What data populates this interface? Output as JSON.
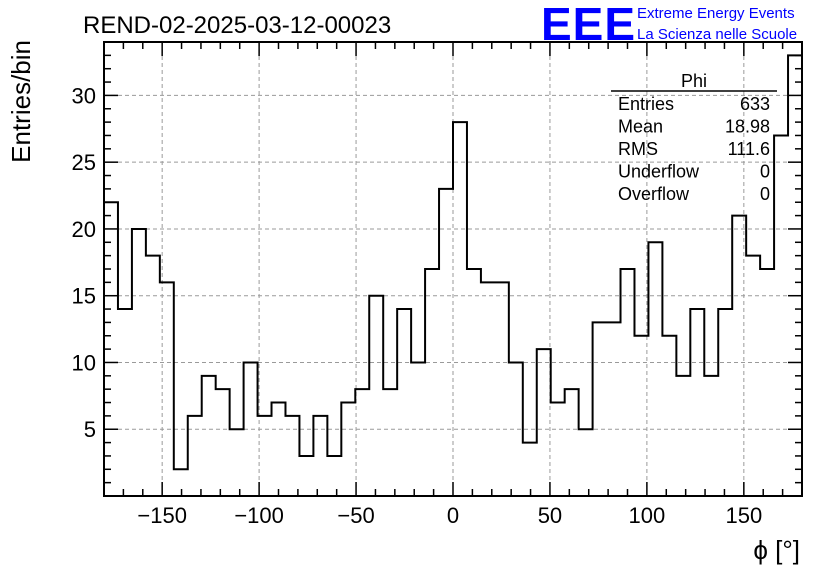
{
  "chart_data": {
    "type": "histogram",
    "title": "REND-02-2025-03-12-00023",
    "xlabel": "ϕ [°]",
    "ylabel": "Entries/bin",
    "xlim": [
      -180,
      180
    ],
    "ylim": [
      0,
      34
    ],
    "bin_width": 7.2,
    "x_ticks": [
      -150,
      -100,
      -50,
      0,
      50,
      100,
      150
    ],
    "x_tick_labels": [
      "−150",
      "−100",
      "−50",
      "0",
      "50",
      "100",
      "150"
    ],
    "y_ticks": [
      5,
      10,
      15,
      20,
      25,
      30
    ],
    "y_tick_labels": [
      "5",
      "10",
      "15",
      "20",
      "25",
      "30"
    ],
    "grid": true,
    "values": [
      22,
      14,
      20,
      18,
      16,
      2,
      6,
      9,
      8,
      5,
      10,
      6,
      7,
      6,
      3,
      6,
      3,
      7,
      8,
      15,
      8,
      14,
      10,
      17,
      23,
      28,
      17,
      16,
      16,
      10,
      4,
      11,
      7,
      8,
      5,
      13,
      13,
      17,
      12,
      19,
      12,
      9,
      14,
      9,
      14,
      21,
      18,
      17,
      27,
      33
    ],
    "stats_box": {
      "name": "Phi",
      "rows": [
        {
          "label": "Entries",
          "value": "633"
        },
        {
          "label": "Mean",
          "value": "18.98"
        },
        {
          "label": "RMS",
          "value": "111.6"
        },
        {
          "label": "Underflow",
          "value": "0"
        },
        {
          "label": "Overflow",
          "value": "0"
        }
      ]
    }
  },
  "logo": {
    "mark": "EEE",
    "line1": "Extreme Energy Events",
    "line2": "La Scienza nelle Scuole",
    "color": "#0000ff"
  },
  "colors": {
    "line": "#000000",
    "grid": "#9a9a9a",
    "background": "#ffffff"
  }
}
